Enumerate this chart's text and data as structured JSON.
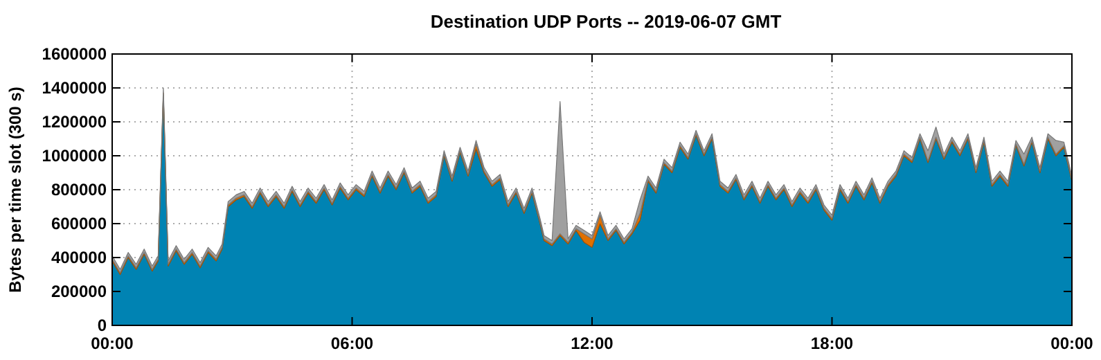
{
  "chart_data": {
    "type": "area",
    "stacked": true,
    "title": "Destination UDP Ports -- 2019-06-07 GMT",
    "ylabel": "Bytes per time slot (300 s)",
    "xlim": [
      0,
      24
    ],
    "xticks": [
      {
        "value": 0,
        "label": "00:00"
      },
      {
        "value": 6,
        "label": "06:00"
      },
      {
        "value": 12,
        "label": "12:00"
      },
      {
        "value": 18,
        "label": "18:00"
      },
      {
        "value": 24,
        "label": "00:00"
      }
    ],
    "ylim": [
      0,
      1600000
    ],
    "yticks": [
      0,
      200000,
      400000,
      600000,
      800000,
      1000000,
      1200000,
      1400000,
      1600000
    ],
    "grid": true,
    "x": [
      0,
      0.2,
      0.4,
      0.6,
      0.8,
      1.0,
      1.15,
      1.28,
      1.4,
      1.6,
      1.8,
      2.0,
      2.2,
      2.4,
      2.6,
      2.75,
      2.9,
      3.1,
      3.3,
      3.5,
      3.7,
      3.9,
      4.1,
      4.3,
      4.5,
      4.7,
      4.9,
      5.1,
      5.3,
      5.5,
      5.7,
      5.9,
      6.1,
      6.3,
      6.5,
      6.7,
      6.9,
      7.1,
      7.3,
      7.5,
      7.7,
      7.9,
      8.1,
      8.3,
      8.5,
      8.7,
      8.9,
      9.1,
      9.3,
      9.5,
      9.7,
      9.9,
      10.1,
      10.3,
      10.5,
      10.7,
      10.8,
      11.0,
      11.2,
      11.4,
      11.6,
      11.8,
      12.0,
      12.2,
      12.4,
      12.6,
      12.8,
      13.0,
      13.2,
      13.4,
      13.6,
      13.8,
      14.0,
      14.2,
      14.4,
      14.6,
      14.8,
      15.0,
      15.2,
      15.4,
      15.6,
      15.8,
      16.0,
      16.2,
      16.4,
      16.6,
      16.8,
      17.0,
      17.2,
      17.4,
      17.6,
      17.8,
      18.0,
      18.2,
      18.4,
      18.6,
      18.8,
      19.0,
      19.2,
      19.4,
      19.6,
      19.8,
      20.0,
      20.2,
      20.4,
      20.6,
      20.8,
      21.0,
      21.2,
      21.4,
      21.6,
      21.8,
      22.0,
      22.2,
      22.4,
      22.6,
      22.8,
      23.0,
      23.2,
      23.4,
      23.6,
      23.8,
      24.0
    ],
    "series": [
      {
        "color": "#0083b3",
        "values": [
          380000,
          300000,
          400000,
          330000,
          420000,
          320000,
          380000,
          1360000,
          350000,
          440000,
          360000,
          420000,
          340000,
          430000,
          380000,
          450000,
          700000,
          740000,
          760000,
          690000,
          780000,
          700000,
          760000,
          690000,
          790000,
          700000,
          780000,
          720000,
          800000,
          710000,
          810000,
          740000,
          800000,
          760000,
          880000,
          780000,
          880000,
          800000,
          900000,
          780000,
          820000,
          720000,
          760000,
          1000000,
          850000,
          1020000,
          880000,
          1040000,
          900000,
          820000,
          860000,
          700000,
          780000,
          660000,
          780000,
          600000,
          500000,
          470000,
          530000,
          480000,
          560000,
          490000,
          460000,
          600000,
          500000,
          560000,
          480000,
          540000,
          620000,
          850000,
          780000,
          950000,
          900000,
          1050000,
          980000,
          1120000,
          1000000,
          1100000,
          820000,
          780000,
          860000,
          740000,
          820000,
          720000,
          820000,
          740000,
          800000,
          700000,
          780000,
          720000,
          800000,
          680000,
          620000,
          800000,
          720000,
          820000,
          740000,
          840000,
          720000,
          820000,
          880000,
          1000000,
          960000,
          1100000,
          960000,
          1100000,
          980000,
          1080000,
          1000000,
          1100000,
          900000,
          1080000,
          820000,
          880000,
          820000,
          1060000,
          940000,
          1080000,
          900000,
          1100000,
          1000000,
          1050000,
          850000
        ]
      },
      {
        "color": "#e07000",
        "values": [
          10000,
          10000,
          10000,
          10000,
          10000,
          10000,
          10000,
          10000,
          10000,
          10000,
          10000,
          10000,
          10000,
          10000,
          10000,
          10000,
          10000,
          10000,
          10000,
          10000,
          10000,
          10000,
          10000,
          10000,
          10000,
          10000,
          10000,
          10000,
          10000,
          10000,
          10000,
          10000,
          10000,
          10000,
          10000,
          10000,
          10000,
          10000,
          10000,
          10000,
          10000,
          10000,
          10000,
          10000,
          10000,
          10000,
          10000,
          30000,
          10000,
          10000,
          10000,
          10000,
          10000,
          10000,
          10000,
          10000,
          10000,
          10000,
          10000,
          10000,
          10000,
          50000,
          50000,
          50000,
          10000,
          10000,
          10000,
          10000,
          40000,
          10000,
          10000,
          10000,
          10000,
          10000,
          10000,
          10000,
          10000,
          10000,
          10000,
          10000,
          10000,
          10000,
          10000,
          10000,
          10000,
          10000,
          10000,
          10000,
          10000,
          10000,
          10000,
          10000,
          10000,
          10000,
          10000,
          10000,
          10000,
          10000,
          10000,
          10000,
          10000,
          10000,
          10000,
          10000,
          10000,
          10000,
          10000,
          10000,
          10000,
          10000,
          10000,
          10000,
          10000,
          10000,
          10000,
          10000,
          10000,
          10000,
          10000,
          10000,
          10000,
          10000,
          10000
        ]
      },
      {
        "color": "#a0a0a0",
        "values": [
          20000,
          20000,
          20000,
          20000,
          20000,
          20000,
          20000,
          30000,
          20000,
          20000,
          20000,
          20000,
          20000,
          20000,
          20000,
          20000,
          20000,
          20000,
          20000,
          20000,
          20000,
          20000,
          20000,
          20000,
          20000,
          20000,
          20000,
          20000,
          20000,
          20000,
          20000,
          20000,
          20000,
          20000,
          20000,
          20000,
          20000,
          20000,
          20000,
          20000,
          20000,
          20000,
          20000,
          20000,
          20000,
          20000,
          20000,
          20000,
          20000,
          20000,
          20000,
          20000,
          20000,
          20000,
          20000,
          20000,
          20000,
          20000,
          780000,
          20000,
          20000,
          20000,
          20000,
          20000,
          20000,
          20000,
          20000,
          20000,
          80000,
          20000,
          20000,
          20000,
          20000,
          20000,
          20000,
          20000,
          20000,
          20000,
          20000,
          20000,
          20000,
          20000,
          20000,
          20000,
          20000,
          20000,
          20000,
          20000,
          20000,
          20000,
          20000,
          20000,
          20000,
          20000,
          20000,
          20000,
          20000,
          20000,
          20000,
          20000,
          20000,
          20000,
          20000,
          20000,
          60000,
          60000,
          20000,
          20000,
          20000,
          20000,
          20000,
          20000,
          20000,
          20000,
          20000,
          20000,
          60000,
          20000,
          20000,
          20000,
          80000,
          20000,
          20000
        ]
      }
    ]
  }
}
